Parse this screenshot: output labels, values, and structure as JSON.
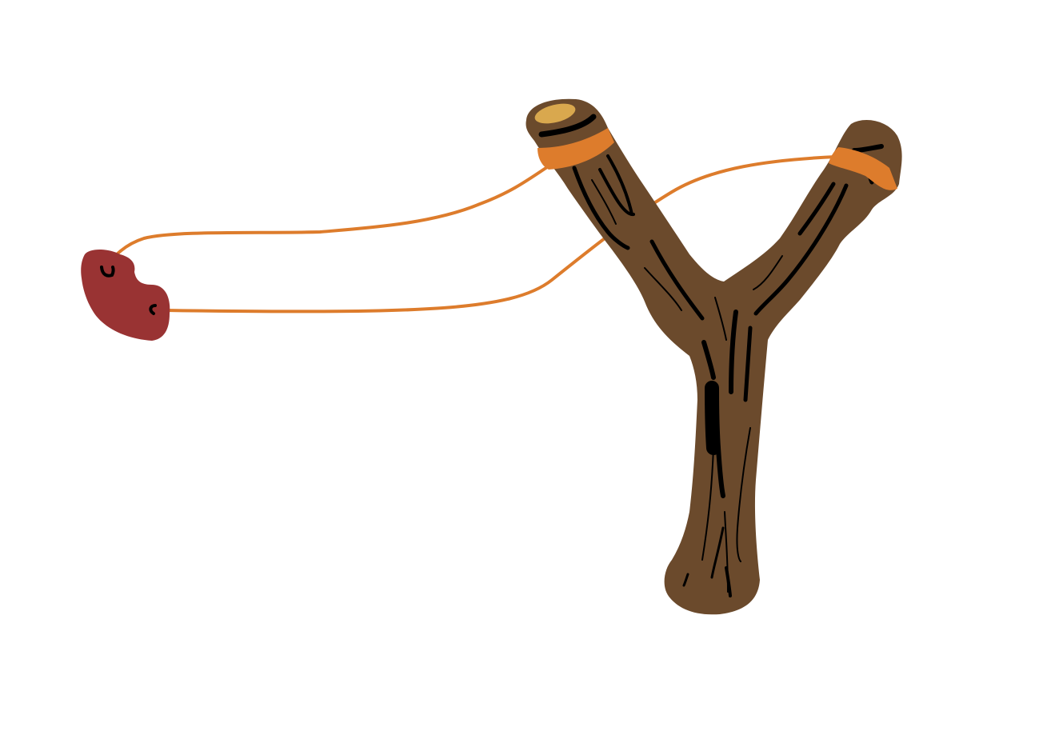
{
  "illustration": {
    "subject": "slingshot",
    "colors": {
      "background": "#ffffff",
      "wood": "#6b4a2c",
      "wood_grain": "#000000",
      "cut_end": "#d9a84e",
      "band": "#dd7c2c",
      "pouch": "#993333"
    }
  }
}
